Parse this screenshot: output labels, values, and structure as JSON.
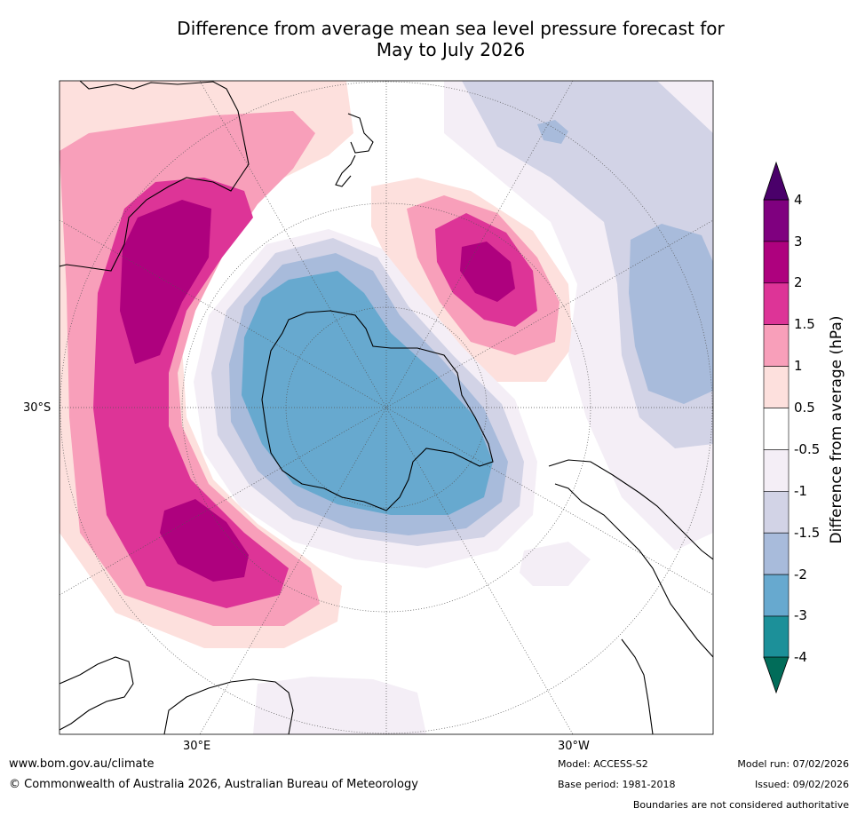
{
  "title": {
    "line1": "Difference from average mean sea level pressure forecast for",
    "line2": "May to July 2026"
  },
  "map": {
    "region": "Southern Hemisphere polar stereographic",
    "lat_labels": {
      "lat30s": "30°S",
      "lon30e": "30°E",
      "lon30w": "30°W"
    },
    "features": [
      "Antarctica",
      "Australia",
      "New Zealand",
      "South America",
      "Southern Africa"
    ]
  },
  "colorbar": {
    "title": "Difference from average (hPa)",
    "ticks": [
      "4",
      "3",
      "2",
      "1.5",
      "1",
      "0.5",
      "-0.5",
      "-1",
      "-1.5",
      "-2",
      "-3",
      "-4"
    ],
    "colors": [
      "#4a006a",
      "#7f007f",
      "#ae017e",
      "#dd3497",
      "#f89fba",
      "#fde0dd",
      "#ffffff",
      "#f4eef6",
      "#d2d3e6",
      "#a8bbdb",
      "#67a9cf",
      "#1c9099",
      "#016c59"
    ]
  },
  "footer": {
    "url": "www.bom.gov.au/climate",
    "copyright": "© Commonwealth of Australia 2026, Australian Bureau of Meteorology",
    "model": "Model: ACCESS-S2",
    "base_period": "Base period: 1981-2018",
    "model_run": "Model run: 07/02/2026",
    "issued": "Issued: 09/02/2026",
    "disclaimer": "Boundaries are not considered authoritative"
  }
}
